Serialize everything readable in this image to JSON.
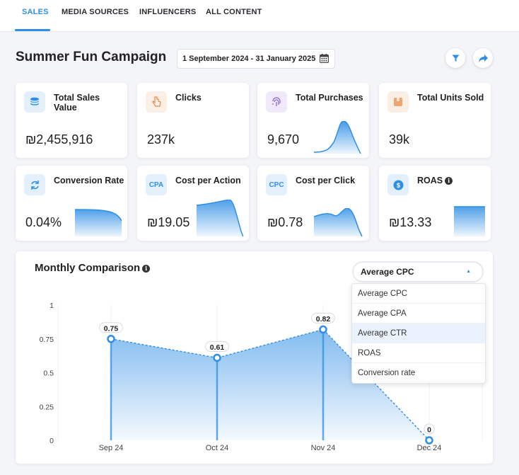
{
  "tabs": [
    "SALES",
    "MEDIA SOURCES",
    "INFLUENCERS",
    "ALL CONTENT"
  ],
  "campaign": {
    "title": "Summer Fun Campaign",
    "date_range": "1 September 2024 - 31 January 2025"
  },
  "cards": [
    {
      "label": "Total Sales Value",
      "value": "₪2,455,916",
      "icon": "coins-stack-icon"
    },
    {
      "label": "Clicks",
      "value": "237k",
      "icon": "pointer-icon"
    },
    {
      "label": "Total Purchases",
      "value": "9,670",
      "icon": "fingerprint-icon"
    },
    {
      "label": "Total Units Sold",
      "value": "39k",
      "icon": "box-icon"
    },
    {
      "label": "Conversion Rate",
      "value": "0.04%",
      "icon": "refresh-arrows-icon"
    },
    {
      "label": "Cost per Action",
      "value": "₪19.05",
      "icon_text": "CPA"
    },
    {
      "label": "Cost per Click",
      "value": "₪0.78",
      "icon_text": "CPC"
    },
    {
      "label": "ROAS",
      "value": "₪13.33",
      "icon": "dollar-coin-icon"
    }
  ],
  "comparison": {
    "title": "Monthly Comparison",
    "selected_metric": "Average CPC",
    "options": [
      "Average CPC",
      "Average CPA",
      "Average CTR",
      "ROAS",
      "Conversion rate"
    ],
    "highlighted_option": "Average CTR"
  },
  "chart_data": {
    "type": "area",
    "categories": [
      "Sep 24",
      "Oct 24",
      "Nov 24",
      "Dec 24"
    ],
    "values": [
      0.75,
      0.61,
      0.82,
      0
    ],
    "data_labels": [
      "0.75",
      "0.61",
      "0.82",
      "0"
    ],
    "y_ticks": [
      "0",
      "0.25",
      "0.5",
      "0.75",
      "1"
    ],
    "ylim": [
      0,
      1
    ],
    "grid": "vertical",
    "color": "#2f8fe6"
  },
  "colors": {
    "accent": "#2f8fe6",
    "text": "#222222"
  }
}
